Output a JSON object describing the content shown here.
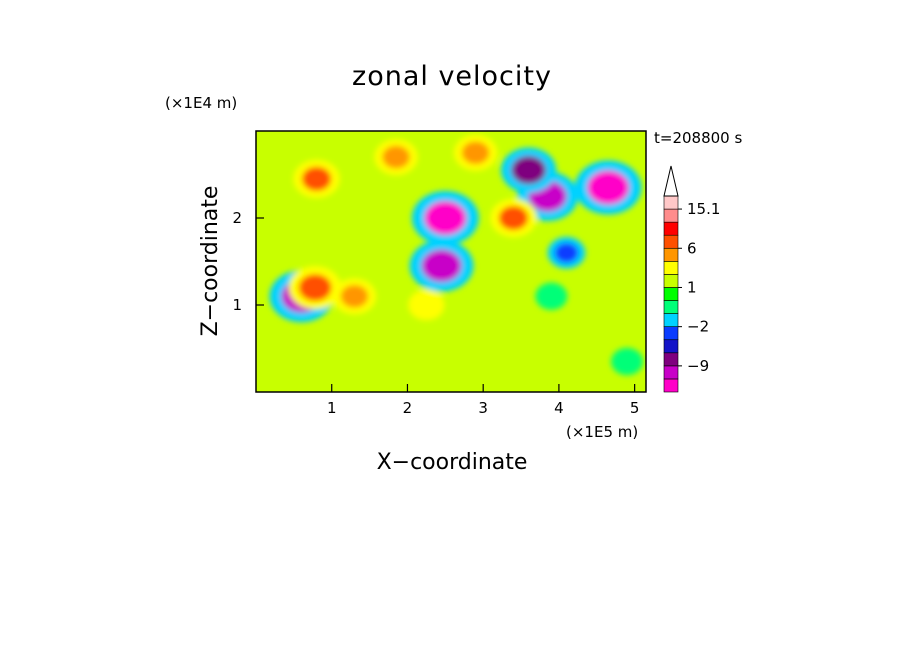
{
  "chart_data": {
    "type": "heatmap",
    "title": "zonal velocity",
    "xlabel": "X−coordinate",
    "ylabel": "Z−coordinate",
    "x_scale_note": "(×1E5 m)",
    "y_scale_note": "(×1E4 m)",
    "time_label": "t=208800 s",
    "xlim": [
      0,
      5.15
    ],
    "ylim": [
      0,
      3.0
    ],
    "x_ticks": [
      "1",
      "2",
      "3",
      "4",
      "5"
    ],
    "y_ticks": [
      "1",
      "2"
    ],
    "colorbar": {
      "levels": [
        -15,
        -12,
        -9,
        -6,
        -4,
        -2,
        -1,
        0,
        1,
        2,
        4,
        6,
        9,
        12,
        15.1
      ],
      "colors": [
        "#ff00c8",
        "#c800c8",
        "#7f007f",
        "#1414c8",
        "#0a3cff",
        "#00d2ff",
        "#00ff78",
        "#00ff00",
        "#c8ff00",
        "#ffff00",
        "#ff9600",
        "#ff5000",
        "#ff0000",
        "#ff8c8c",
        "#ffc8c8"
      ],
      "tick_labels": [
        "15.1",
        "6",
        "1",
        "−2",
        "−9"
      ],
      "tick_values": [
        15.1,
        6,
        1,
        -2,
        -9
      ],
      "extend": "max"
    },
    "features": [
      {
        "x": 2.5,
        "z": 2.0,
        "u": -13,
        "desc": "negative lobe"
      },
      {
        "x": 2.45,
        "z": 1.45,
        "u": -12,
        "desc": "negative lobe"
      },
      {
        "x": 3.85,
        "z": 2.25,
        "u": -11,
        "desc": "negative lobe"
      },
      {
        "x": 4.65,
        "z": 2.35,
        "u": -13,
        "desc": "negative lobe"
      },
      {
        "x": 3.6,
        "z": 2.55,
        "u": -9,
        "desc": "negative lobe"
      },
      {
        "x": 0.6,
        "z": 1.1,
        "u": -12,
        "desc": "negative streak"
      },
      {
        "x": 0.78,
        "z": 1.2,
        "u": 8,
        "desc": "positive streak"
      },
      {
        "x": 1.3,
        "z": 1.1,
        "u": 5,
        "desc": "positive region"
      },
      {
        "x": 0.8,
        "z": 2.45,
        "u": 6,
        "desc": "positive region"
      },
      {
        "x": 3.4,
        "z": 2.0,
        "u": 6,
        "desc": "positive lobe"
      },
      {
        "x": 2.9,
        "z": 2.75,
        "u": 5,
        "desc": "positive lobe"
      },
      {
        "x": 1.85,
        "z": 2.7,
        "u": 5,
        "desc": "positive lobe"
      },
      {
        "x": 2.25,
        "z": 1.0,
        "u": 2.5,
        "desc": "weak positive region"
      },
      {
        "x": 4.1,
        "z": 1.6,
        "u": -3,
        "desc": "negative region"
      },
      {
        "x": 3.9,
        "z": 1.1,
        "u": -1,
        "desc": "weak negative region"
      },
      {
        "x": 4.9,
        "z": 0.35,
        "u": -1,
        "desc": "weak negative region"
      }
    ]
  }
}
